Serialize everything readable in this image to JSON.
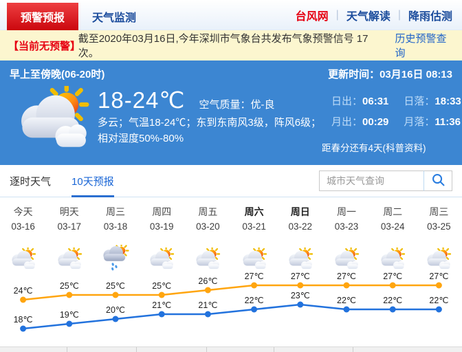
{
  "nav": {
    "tabs": [
      {
        "label": "预警预报",
        "active": true
      },
      {
        "label": "天气监测",
        "active": false
      }
    ],
    "links": [
      {
        "label": "台风网",
        "hot": true
      },
      {
        "label": "天气解读",
        "hot": false
      },
      {
        "label": "降雨估测",
        "hot": false
      }
    ]
  },
  "alert": {
    "badge": "【当前无预警】",
    "text": "截至2020年03月16日,今年深圳市气象台共发布气象预警信号 17 次。",
    "link": "历史预警查询"
  },
  "current": {
    "period": "早上至傍晚(06-20时)",
    "update_label": "更新时间：",
    "update_time": "03月16日 08:13",
    "temp_range": "18-24℃",
    "air_quality_label": "空气质量：",
    "air_quality": "优-良",
    "description": "多云；气温18-24℃；东到东南风3级，阵风6级；相对湿度50%-80%",
    "sun_moon": [
      {
        "label": "日出：",
        "value": "06:31"
      },
      {
        "label": "日落：",
        "value": "18:33"
      },
      {
        "label": "月出：",
        "value": "00:29"
      },
      {
        "label": "月落：",
        "value": "11:36"
      }
    ],
    "note": "距春分还有4天(科普资料)",
    "icon": "partly-cloudy"
  },
  "forecast_tabs": [
    {
      "label": "逐时天气",
      "active": false
    },
    {
      "label": "10天预报",
      "active": true
    }
  ],
  "search": {
    "placeholder": "城市天气查询"
  },
  "chart_data": {
    "type": "line",
    "title": "10天预报气温走势",
    "categories": [
      "今天",
      "明天",
      "周三",
      "周四",
      "周五",
      "周六",
      "周日",
      "周一",
      "周二",
      "周三"
    ],
    "dates": [
      "03-16",
      "03-17",
      "03-18",
      "03-19",
      "03-20",
      "03-21",
      "03-22",
      "03-23",
      "03-24",
      "03-25"
    ],
    "weather_icons": [
      "partly-cloudy",
      "partly-cloudy",
      "rain",
      "partly-cloudy",
      "partly-cloudy",
      "partly-cloudy",
      "partly-cloudy",
      "partly-cloudy",
      "partly-cloudy",
      "partly-cloudy"
    ],
    "weekend_indexes": [
      5,
      6
    ],
    "series": [
      {
        "name": "high",
        "color": "#ffa50f",
        "values": [
          24,
          25,
          25,
          25,
          26,
          27,
          27,
          27,
          27,
          27
        ]
      },
      {
        "name": "low",
        "color": "#2272dd",
        "values": [
          18,
          19,
          20,
          21,
          21,
          22,
          23,
          22,
          22,
          22
        ]
      }
    ],
    "unit": "℃",
    "ylim": [
      17,
      28
    ],
    "grid": false,
    "legend": "none"
  },
  "colors": {
    "panel_blue": "#3c86d2",
    "tab_red": "#cb070e",
    "link_blue": "#1e62c8",
    "high_line": "#ffa50f",
    "low_line": "#2272dd"
  }
}
